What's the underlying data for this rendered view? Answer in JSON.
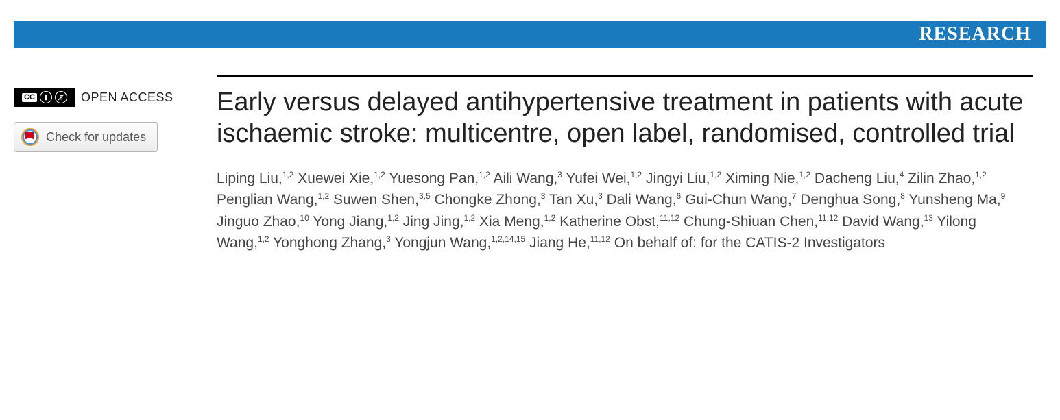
{
  "banner": {
    "label": "RESEARCH",
    "bg_color": "#1b79bd",
    "text_color": "#ffffff"
  },
  "sidebar": {
    "open_access_label": "OPEN ACCESS",
    "cc_icons": [
      "CC",
      "BY",
      "NC"
    ],
    "check_updates_label": "Check for updates"
  },
  "article": {
    "title": "Early versus delayed antihypertensive treatment in patients with acute ischaemic stroke: multicentre, open label, randomised, controlled trial",
    "authors": [
      {
        "name": "Liping Liu",
        "aff": "1,2"
      },
      {
        "name": "Xuewei Xie",
        "aff": "1,2"
      },
      {
        "name": "Yuesong Pan",
        "aff": "1,2"
      },
      {
        "name": "Aili Wang",
        "aff": "3"
      },
      {
        "name": "Yufei Wei",
        "aff": "1,2"
      },
      {
        "name": "Jingyi Liu",
        "aff": "1,2"
      },
      {
        "name": "Ximing Nie",
        "aff": "1,2"
      },
      {
        "name": "Dacheng Liu",
        "aff": "4"
      },
      {
        "name": "Zilin Zhao",
        "aff": "1,2"
      },
      {
        "name": "Penglian Wang",
        "aff": "1,2"
      },
      {
        "name": "Suwen Shen",
        "aff": "3,5"
      },
      {
        "name": "Chongke Zhong",
        "aff": "3"
      },
      {
        "name": "Tan Xu",
        "aff": "3"
      },
      {
        "name": "Dali Wang",
        "aff": "6"
      },
      {
        "name": "Gui-Chun Wang",
        "aff": "7"
      },
      {
        "name": "Denghua Song",
        "aff": "8"
      },
      {
        "name": "Yunsheng Ma",
        "aff": "9"
      },
      {
        "name": "Jinguo Zhao",
        "aff": "10"
      },
      {
        "name": "Yong Jiang",
        "aff": "1,2"
      },
      {
        "name": "Jing Jing",
        "aff": "1,2"
      },
      {
        "name": "Xia Meng",
        "aff": "1,2"
      },
      {
        "name": "Katherine Obst",
        "aff": "11,12"
      },
      {
        "name": "Chung-Shiuan Chen",
        "aff": "11,12"
      },
      {
        "name": "David Wang",
        "aff": "13"
      },
      {
        "name": "Yilong Wang",
        "aff": "1,2"
      },
      {
        "name": "Yonghong Zhang",
        "aff": "3"
      },
      {
        "name": "Yongjun Wang",
        "aff": "1,2,14,15"
      },
      {
        "name": "Jiang He",
        "aff": "11,12"
      }
    ],
    "on_behalf": "On behalf of: for the CATIS-2 Investigators"
  },
  "colors": {
    "text": "#222222",
    "author_text": "#444444",
    "rule": "#000000"
  },
  "typography": {
    "title_fontsize": 38,
    "author_fontsize": 21,
    "banner_fontsize": 28
  }
}
